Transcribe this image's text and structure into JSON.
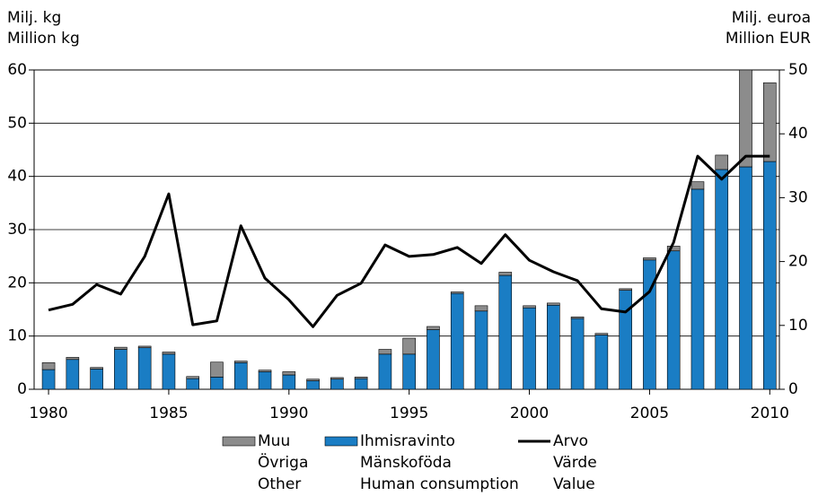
{
  "chart_data": {
    "type": "bar",
    "stacked": true,
    "y_label": [
      "Milj. kg",
      "Million kg"
    ],
    "y2_label": [
      "Milj. euroa",
      "Million EUR"
    ],
    "x": [
      1980,
      1981,
      1982,
      1983,
      1984,
      1985,
      1986,
      1987,
      1988,
      1989,
      1990,
      1991,
      1992,
      1993,
      1994,
      1995,
      1996,
      1997,
      1998,
      1999,
      2000,
      2001,
      2002,
      2003,
      2004,
      2005,
      2006,
      2007,
      2008,
      2009,
      2010
    ],
    "xlim": [
      1979.4,
      2010.4
    ],
    "xticks": [
      1980,
      1985,
      1990,
      1995,
      2000,
      2005,
      2010
    ],
    "ylim": [
      0,
      60
    ],
    "yticks": [
      0,
      10,
      20,
      30,
      40,
      50,
      60
    ],
    "y2lim": [
      0,
      50
    ],
    "y2ticks": [
      0,
      10,
      20,
      30,
      40,
      50
    ],
    "series": [
      {
        "name": [
          "Ihmisravinto",
          "Mänskoföda",
          "Human consumption"
        ],
        "type": "bar",
        "color": "#1a7dc4",
        "values": [
          3.7,
          5.6,
          3.8,
          7.5,
          7.8,
          6.6,
          2.0,
          2.3,
          5.0,
          3.3,
          2.7,
          1.6,
          1.9,
          2.0,
          6.6,
          6.6,
          11.2,
          18.0,
          14.7,
          21.4,
          15.3,
          15.8,
          13.3,
          10.2,
          18.6,
          24.3,
          26.0,
          37.6,
          41.3,
          41.8,
          42.8
        ]
      },
      {
        "name": [
          "Muu",
          "Övriga",
          "Other"
        ],
        "type": "bar",
        "color": "#8c8c8c",
        "values": [
          1.3,
          0.4,
          0.3,
          0.4,
          0.3,
          0.4,
          0.4,
          2.8,
          0.3,
          0.3,
          0.6,
          0.3,
          0.3,
          0.3,
          0.9,
          3.0,
          0.6,
          0.3,
          1.0,
          0.6,
          0.4,
          0.4,
          0.3,
          0.3,
          0.3,
          0.4,
          0.9,
          1.4,
          2.7,
          18.2,
          14.8
        ]
      },
      {
        "name": [
          "Arvo",
          "Värde",
          "Value"
        ],
        "type": "line",
        "axis": "y2",
        "color": "#000000",
        "values": [
          12.4,
          13.3,
          16.4,
          14.9,
          20.8,
          30.6,
          10.1,
          10.7,
          25.6,
          17.4,
          14.0,
          9.8,
          14.7,
          16.6,
          22.6,
          20.8,
          21.1,
          22.2,
          19.7,
          24.2,
          20.2,
          18.4,
          17.0,
          12.6,
          12.1,
          15.3,
          23.0,
          36.5,
          32.9,
          36.5,
          36.5
        ]
      }
    ]
  }
}
